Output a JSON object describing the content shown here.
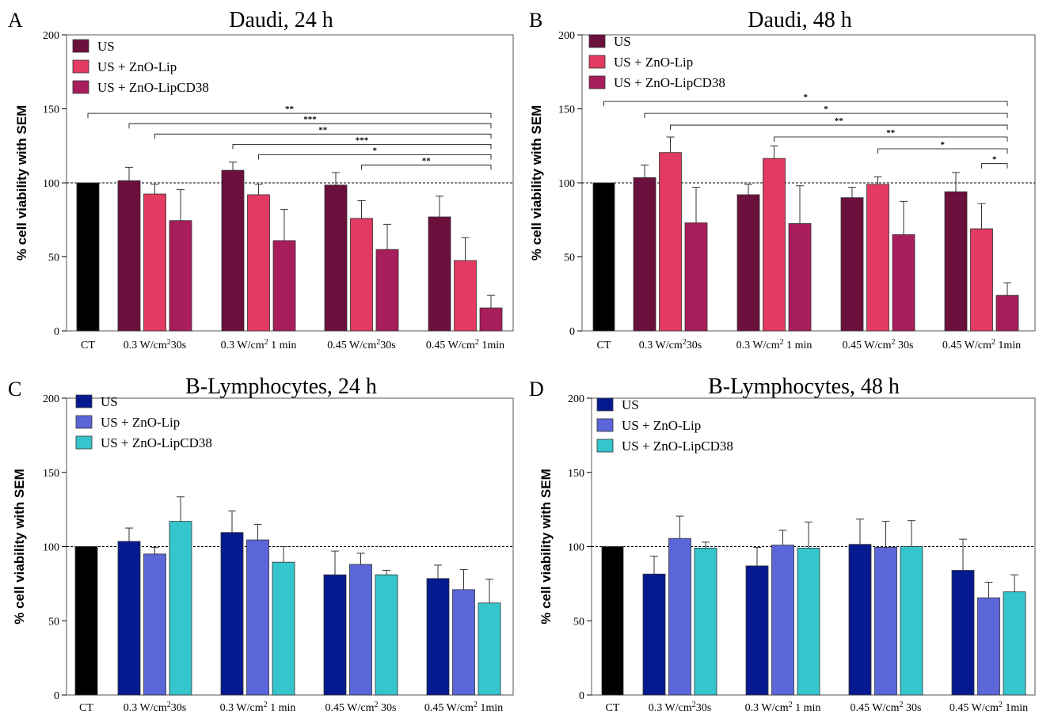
{
  "figure": {
    "panel_letters": [
      "A",
      "B",
      "C",
      "D"
    ]
  },
  "chart_data": [
    {
      "type": "bar",
      "panel": "A",
      "title": "Daudi, 24 h",
      "xlabel": "",
      "ylabel": "% cell viability with SEM",
      "ylim": [
        0,
        200
      ],
      "yticks": [
        0,
        50,
        100,
        150,
        200
      ],
      "reference_line": 100,
      "grid": false,
      "legend_position": "top-left",
      "control": {
        "label": "CT",
        "value": 100,
        "color": "#000000"
      },
      "categories": [
        {
          "pre": "0.3 W/cm",
          "sup": "2",
          "post": "30s"
        },
        {
          "pre": "0.3 W/cm",
          "sup": "2",
          "post": " 1 min"
        },
        {
          "pre": "0.45 W/cm",
          "sup": "2",
          "post": "30s"
        },
        {
          "pre": "0.45 W/cm",
          "sup": "2",
          "post": " 1min"
        }
      ],
      "series": [
        {
          "name": "US",
          "color": "#6b0f3d",
          "values": [
            101.5,
            108.5,
            98.5,
            77.0
          ],
          "errors": [
            9.0,
            5.5,
            8.5,
            14.0
          ]
        },
        {
          "name": "US + ZnO-Lip",
          "color": "#e23a60",
          "values": [
            92.5,
            92.0,
            76.0,
            47.5
          ],
          "errors": [
            6.5,
            7.0,
            12.0,
            15.5
          ]
        },
        {
          "name": "US + ZnO-LipCD38",
          "color": "#a81d5c",
          "values": [
            74.5,
            61.0,
            55.0,
            15.5
          ],
          "errors": [
            21.0,
            21.0,
            17.0,
            8.5
          ]
        }
      ],
      "significance": [
        {
          "from": "CT",
          "to": "0.45 W/cm2 1min / US + ZnO-LipCD38",
          "label": "**",
          "y": 147
        },
        {
          "from": "0.3 W/cm2 30s / US",
          "to": "0.45 W/cm2 1min / US + ZnO-LipCD38",
          "label": "***",
          "y": 140
        },
        {
          "from": "0.3 W/cm2 30s / US + ZnO-Lip",
          "to": "0.45 W/cm2 1min / US + ZnO-LipCD38",
          "label": "**",
          "y": 133
        },
        {
          "from": "0.3 W/cm2 1 min / US",
          "to": "0.45 W/cm2 1min / US + ZnO-LipCD38",
          "label": "***",
          "y": 126
        },
        {
          "from": "0.3 W/cm2 1 min / US + ZnO-Lip",
          "to": "0.45 W/cm2 1min / US + ZnO-LipCD38",
          "label": "*",
          "y": 119
        },
        {
          "from": "0.45 W/cm2 30s / US + ZnO-Lip",
          "to": "0.45 W/cm2 1min / US + ZnO-LipCD38",
          "label": "**",
          "y": 112
        }
      ]
    },
    {
      "type": "bar",
      "panel": "B",
      "title": "Daudi, 48 h",
      "xlabel": "",
      "ylabel": "% cell viability with SEM",
      "ylim": [
        0,
        200
      ],
      "yticks": [
        0,
        50,
        100,
        150,
        200
      ],
      "reference_line": 100,
      "grid": false,
      "legend_position": "top-left",
      "control": {
        "label": "CT",
        "value": 100,
        "color": "#000000"
      },
      "categories": [
        {
          "pre": "0.3 W/cm",
          "sup": "2",
          "post": "30s"
        },
        {
          "pre": "0.3 W/cm",
          "sup": "2",
          "post": " 1 min"
        },
        {
          "pre": "0.45 W/cm",
          "sup": "2",
          "post": " 30s"
        },
        {
          "pre": "0.45 W/cm",
          "sup": "2",
          "post": " 1min"
        }
      ],
      "series": [
        {
          "name": "US",
          "color": "#6b0f3d",
          "values": [
            103.5,
            92.0,
            90.0,
            94.0
          ],
          "errors": [
            8.5,
            7.0,
            7.0,
            13.0
          ]
        },
        {
          "name": "US + ZnO-Lip",
          "color": "#e23a60",
          "values": [
            120.5,
            116.5,
            99.0,
            69.0
          ],
          "errors": [
            10.5,
            8.5,
            5.0,
            17.0
          ]
        },
        {
          "name": "US + ZnO-LipCD38",
          "color": "#a81d5c",
          "values": [
            73.0,
            72.5,
            65.0,
            24.0
          ],
          "errors": [
            24.0,
            25.5,
            22.5,
            8.5
          ]
        }
      ],
      "significance": [
        {
          "from": "CT",
          "to": "0.45 W/cm2 1min / US + ZnO-LipCD38",
          "label": "*",
          "y": 155
        },
        {
          "from": "0.3 W/cm2 30s / US",
          "to": "0.45 W/cm2 1min / US + ZnO-LipCD38",
          "label": "*",
          "y": 147
        },
        {
          "from": "0.3 W/cm2 30s / US + ZnO-Lip",
          "to": "0.45 W/cm2 1min / US + ZnO-LipCD38",
          "label": "**",
          "y": 139
        },
        {
          "from": "0.3 W/cm2 1 min / US + ZnO-Lip",
          "to": "0.45 W/cm2 1min / US + ZnO-LipCD38",
          "label": "**",
          "y": 131
        },
        {
          "from": "0.45 W/cm2 30s / US + ZnO-Lip",
          "to": "0.45 W/cm2 1min / US + ZnO-LipCD38",
          "label": "*",
          "y": 123
        },
        {
          "from": "0.45 W/cm2 1min / US + ZnO-Lip",
          "to": "0.45 W/cm2 1min / US + ZnO-LipCD38",
          "label": "*",
          "y": 113
        }
      ]
    },
    {
      "type": "bar",
      "panel": "C",
      "title": "B-Lymphocytes, 24 h",
      "xlabel": "",
      "ylabel": "% cell viability with SEM",
      "ylim": [
        0,
        200
      ],
      "yticks": [
        0,
        50,
        100,
        150,
        200
      ],
      "reference_line": 100,
      "grid": false,
      "legend_position": "top-left",
      "control": {
        "label": "CT",
        "value": 100,
        "color": "#000000"
      },
      "categories": [
        {
          "pre": "0.3 W/cm",
          "sup": "2",
          "post": "30s"
        },
        {
          "pre": "0.3 W/cm",
          "sup": "2",
          "post": " 1 min"
        },
        {
          "pre": "0.45 W/cm",
          "sup": "2",
          "post": " 30s"
        },
        {
          "pre": "0.45 W/cm",
          "sup": "2",
          "post": " 1min"
        }
      ],
      "series": [
        {
          "name": "US",
          "color": "#061a8f",
          "values": [
            103.5,
            109.5,
            81.0,
            78.5
          ],
          "errors": [
            9.0,
            14.5,
            16.0,
            9.0
          ]
        },
        {
          "name": "US + ZnO-Lip",
          "color": "#5b66d9",
          "values": [
            95.0,
            104.5,
            88.0,
            71.0
          ],
          "errors": [
            4.5,
            10.5,
            7.5,
            13.5
          ]
        },
        {
          "name": "US + ZnO-LipCD38",
          "color": "#34c5cd",
          "values": [
            117.0,
            89.5,
            81.0,
            62.0
          ],
          "errors": [
            16.5,
            10.5,
            3.0,
            16.0
          ]
        }
      ],
      "significance": []
    },
    {
      "type": "bar",
      "panel": "D",
      "title": "B-Lymphocytes, 48 h",
      "xlabel": "",
      "ylabel": "% cell viability with SEM",
      "ylim": [
        0,
        200
      ],
      "yticks": [
        0,
        50,
        100,
        150,
        200
      ],
      "reference_line": 100,
      "grid": false,
      "legend_position": "top-left",
      "control": {
        "label": "CT",
        "value": 100,
        "color": "#000000"
      },
      "categories": [
        {
          "pre": "0.3 W/cm",
          "sup": "2",
          "post": "30s"
        },
        {
          "pre": "0.3 W/cm",
          "sup": "2",
          "post": " 1 min"
        },
        {
          "pre": "0.45 W/cm",
          "sup": "2",
          "post": " 30s"
        },
        {
          "pre": "0.45 W/cm",
          "sup": "2",
          "post": " 1min"
        }
      ],
      "series": [
        {
          "name": "US",
          "color": "#061a8f",
          "values": [
            81.5,
            87.0,
            101.5,
            84.0
          ],
          "errors": [
            12.0,
            12.5,
            17.0,
            21.0
          ]
        },
        {
          "name": "US + ZnO-Lip",
          "color": "#5b66d9",
          "values": [
            105.5,
            101.0,
            99.5,
            65.5
          ],
          "errors": [
            15.0,
            10.0,
            17.5,
            10.5
          ]
        },
        {
          "name": "US + ZnO-LipCD38",
          "color": "#34c5cd",
          "values": [
            99.0,
            99.0,
            100.0,
            69.5
          ],
          "errors": [
            4.0,
            17.5,
            17.5,
            11.5
          ]
        }
      ],
      "significance": []
    }
  ]
}
